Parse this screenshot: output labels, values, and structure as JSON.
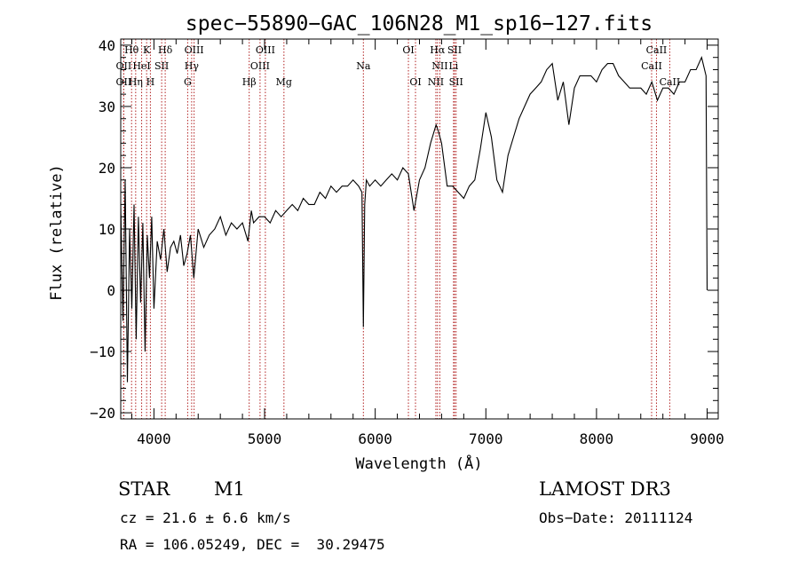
{
  "chart_data": {
    "type": "line",
    "title": "spec−55890−GAC_106N28_M1_sp16−127.fits",
    "xlabel": "Wavelength (Å)",
    "ylabel": "Flux (relative)",
    "xlim": [
      3700,
      9100
    ],
    "ylim": [
      -21,
      41
    ],
    "x_ticks": [
      4000,
      5000,
      6000,
      7000,
      8000,
      9000
    ],
    "x_tick_labels": [
      "4000",
      "5000",
      "6000",
      "7000",
      "8000",
      "9000"
    ],
    "y_ticks": [
      -20,
      -10,
      0,
      10,
      20,
      30,
      40
    ],
    "y_tick_labels": [
      "−20",
      "−10",
      "0",
      "10",
      "20",
      "30",
      "40"
    ],
    "line_color": "#000000",
    "marker_color": "#b22222",
    "series": [
      {
        "name": "spectrum",
        "x": [
          3700,
          3720,
          3740,
          3760,
          3780,
          3800,
          3820,
          3840,
          3860,
          3880,
          3900,
          3920,
          3940,
          3960,
          3980,
          4000,
          4030,
          4060,
          4090,
          4120,
          4150,
          4180,
          4210,
          4240,
          4270,
          4300,
          4330,
          4360,
          4400,
          4450,
          4500,
          4550,
          4600,
          4650,
          4700,
          4750,
          4800,
          4850,
          4880,
          4900,
          4950,
          5000,
          5050,
          5100,
          5150,
          5200,
          5250,
          5300,
          5350,
          5400,
          5450,
          5500,
          5550,
          5600,
          5650,
          5700,
          5750,
          5800,
          5850,
          5880,
          5893,
          5905,
          5920,
          5950,
          6000,
          6050,
          6100,
          6150,
          6200,
          6250,
          6300,
          6350,
          6400,
          6450,
          6500,
          6550,
          6570,
          6600,
          6650,
          6700,
          6750,
          6800,
          6850,
          6900,
          6950,
          7000,
          7050,
          7100,
          7150,
          7200,
          7250,
          7300,
          7350,
          7400,
          7450,
          7500,
          7550,
          7600,
          7650,
          7700,
          7750,
          7800,
          7850,
          7900,
          7950,
          8000,
          8050,
          8100,
          8150,
          8200,
          8250,
          8300,
          8350,
          8400,
          8450,
          8500,
          8550,
          8600,
          8650,
          8700,
          8750,
          8800,
          8850,
          8900,
          8950,
          8990,
          9000
        ],
        "values": [
          14,
          -5,
          18,
          -15,
          10,
          -3,
          14,
          -8,
          12,
          -2,
          11,
          -10,
          9,
          2,
          12,
          -3,
          8,
          5,
          10,
          3,
          7,
          8,
          6,
          9,
          4,
          6,
          9,
          2,
          10,
          7,
          9,
          10,
          12,
          9,
          11,
          10,
          11,
          8,
          13,
          11,
          12,
          12,
          11,
          13,
          12,
          13,
          14,
          13,
          15,
          14,
          14,
          16,
          15,
          17,
          16,
          17,
          17,
          18,
          17,
          16,
          -6,
          14,
          18,
          17,
          18,
          17,
          18,
          19,
          18,
          20,
          19,
          13,
          18,
          20,
          24,
          27,
          26,
          24,
          17,
          17,
          16,
          15,
          17,
          18,
          23,
          29,
          25,
          18,
          16,
          22,
          25,
          28,
          30,
          32,
          33,
          34,
          36,
          37,
          31,
          34,
          27,
          33,
          35,
          35,
          35,
          34,
          36,
          37,
          37,
          35,
          34,
          33,
          33,
          33,
          32,
          34,
          31,
          33,
          33,
          32,
          34,
          34,
          36,
          36,
          38,
          35,
          0
        ]
      }
    ],
    "lines": [
      {
        "label": "Hθ",
        "x": 3798,
        "row": 0
      },
      {
        "label": "OII",
        "x": 3727,
        "row": 1
      },
      {
        "label": "OII",
        "x": 3727,
        "row": 2
      },
      {
        "label": "K",
        "x": 3934,
        "row": 0
      },
      {
        "label": "HeI",
        "x": 3889,
        "row": 1
      },
      {
        "label": "Hη",
        "x": 3835,
        "row": 2
      },
      {
        "label": "H",
        "x": 3968,
        "row": 2
      },
      {
        "label": "SII",
        "x": 4070,
        "row": 1
      },
      {
        "label": "Hδ",
        "x": 4102,
        "row": 0
      },
      {
        "label": "OIII",
        "x": 4363,
        "row": 0
      },
      {
        "label": "Hγ",
        "x": 4341,
        "row": 1
      },
      {
        "label": "G",
        "x": 4305,
        "row": 2
      },
      {
        "label": "Hβ",
        "x": 4861,
        "row": 2
      },
      {
        "label": "OIII",
        "x": 5007,
        "row": 0
      },
      {
        "label": "OIII",
        "x": 4959,
        "row": 1
      },
      {
        "label": "Mg",
        "x": 5175,
        "row": 2
      },
      {
        "label": "Na",
        "x": 5893,
        "row": 1
      },
      {
        "label": "OI",
        "x": 6300,
        "row": 0
      },
      {
        "label": "OI",
        "x": 6364,
        "row": 2
      },
      {
        "label": "Hα",
        "x": 6563,
        "row": 0
      },
      {
        "label": "SII",
        "x": 6717,
        "row": 0
      },
      {
        "label": "NII",
        "x": 6584,
        "row": 1
      },
      {
        "label": "Li",
        "x": 6708,
        "row": 1
      },
      {
        "label": "NII",
        "x": 6548,
        "row": 2
      },
      {
        "label": "SII",
        "x": 6731,
        "row": 2
      },
      {
        "label": "CaII",
        "x": 8542,
        "row": 0
      },
      {
        "label": "CaII",
        "x": 8498,
        "row": 1
      },
      {
        "label": "CaII",
        "x": 8662,
        "row": 2
      }
    ]
  },
  "info": {
    "star_label": "STAR",
    "subclass": "M1",
    "survey": "LAMOST DR3",
    "cz": "cz = 21.6 ± 6.6 km/s",
    "obs_date": "Obs−Date: 20111124",
    "coords": "RA = 106.05249, DEC =  30.29475"
  }
}
